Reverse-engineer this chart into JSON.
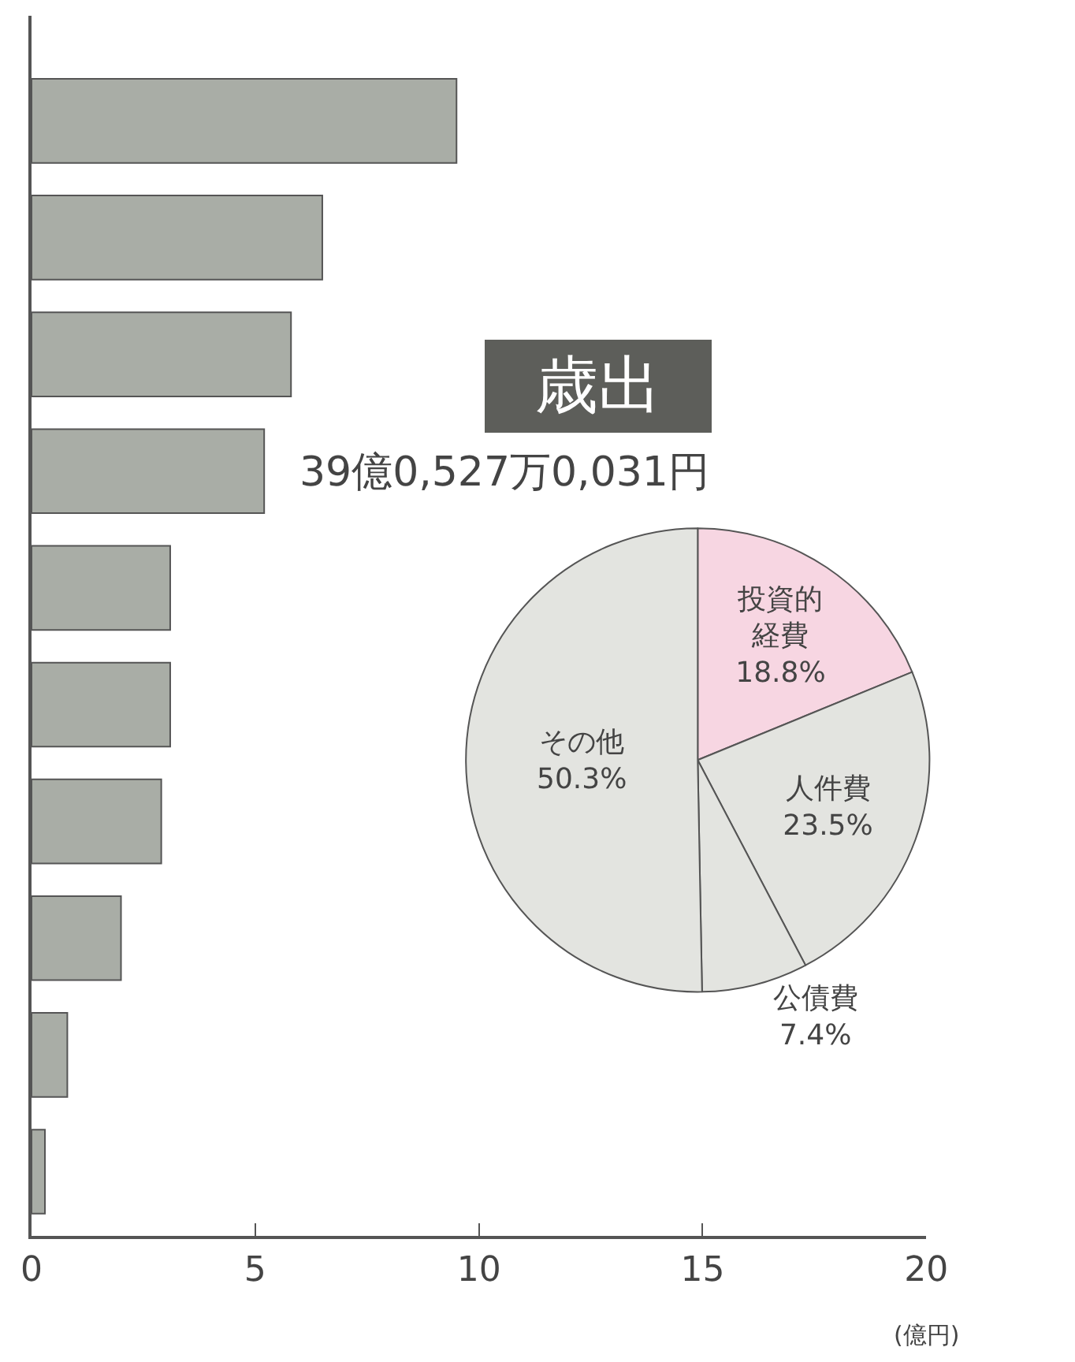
{
  "chart_data": [
    {
      "type": "bar",
      "orientation": "horizontal",
      "categories": [
        null,
        null,
        null,
        null,
        null,
        null,
        null,
        null,
        null,
        null
      ],
      "values": [
        9.5,
        6.5,
        5.8,
        5.2,
        3.1,
        3.1,
        2.9,
        2.0,
        0.8,
        0.3
      ],
      "color": "#a9ada6",
      "xlim": [
        0,
        20
      ],
      "xticks": [
        0,
        5,
        10,
        15,
        20
      ],
      "xlabel": "(億円)",
      "tick_labels": "x"
    },
    {
      "type": "pie",
      "title": "歳出",
      "subtitle": "39億0,527万0,031円",
      "categories": [
        "投資的経費",
        "人件費",
        "公債費",
        "その他"
      ],
      "values": [
        18.8,
        23.5,
        7.4,
        50.3
      ],
      "value_labels": [
        "18.8%",
        "23.5%",
        "7.4%",
        "50.3%"
      ],
      "colors": [
        "#f7d6e2",
        "#e3e4e0",
        "#e3e4e0",
        "#e3e4e0"
      ]
    }
  ]
}
